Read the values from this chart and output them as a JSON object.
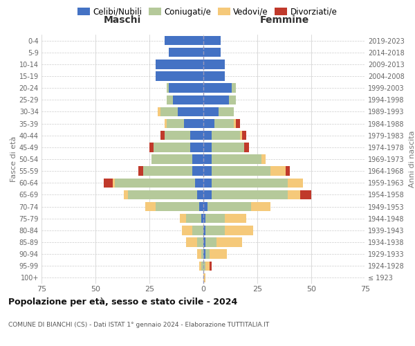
{
  "age_groups": [
    "100+",
    "95-99",
    "90-94",
    "85-89",
    "80-84",
    "75-79",
    "70-74",
    "65-69",
    "60-64",
    "55-59",
    "50-54",
    "45-49",
    "40-44",
    "35-39",
    "30-34",
    "25-29",
    "20-24",
    "15-19",
    "10-14",
    "5-9",
    "0-4"
  ],
  "birth_years": [
    "≤ 1923",
    "1924-1928",
    "1929-1933",
    "1934-1938",
    "1939-1943",
    "1944-1948",
    "1949-1953",
    "1954-1958",
    "1959-1963",
    "1964-1968",
    "1969-1973",
    "1974-1978",
    "1979-1983",
    "1984-1988",
    "1989-1993",
    "1994-1998",
    "1999-2003",
    "2004-2008",
    "2009-2013",
    "2014-2018",
    "2019-2023"
  ],
  "male_celibe": [
    0,
    0,
    0,
    0,
    0,
    1,
    2,
    3,
    4,
    5,
    5,
    6,
    6,
    9,
    12,
    14,
    16,
    22,
    22,
    16,
    18
  ],
  "male_coniugato": [
    0,
    1,
    1,
    3,
    5,
    7,
    20,
    32,
    37,
    23,
    19,
    17,
    12,
    8,
    8,
    3,
    1,
    0,
    0,
    0,
    0
  ],
  "male_vedovo": [
    0,
    1,
    2,
    5,
    5,
    3,
    5,
    2,
    1,
    0,
    0,
    0,
    0,
    1,
    1,
    0,
    0,
    0,
    0,
    0,
    0
  ],
  "male_divorziato": [
    0,
    0,
    0,
    0,
    0,
    0,
    0,
    0,
    4,
    2,
    0,
    2,
    2,
    0,
    0,
    0,
    0,
    0,
    0,
    0,
    0
  ],
  "female_nubile": [
    0,
    0,
    1,
    1,
    1,
    1,
    2,
    4,
    4,
    4,
    4,
    4,
    4,
    5,
    7,
    12,
    13,
    10,
    10,
    8,
    8
  ],
  "female_coniugata": [
    0,
    1,
    2,
    5,
    9,
    9,
    20,
    35,
    35,
    27,
    23,
    15,
    13,
    9,
    7,
    3,
    2,
    0,
    0,
    0,
    0
  ],
  "female_vedova": [
    1,
    2,
    8,
    12,
    13,
    10,
    9,
    6,
    7,
    7,
    2,
    0,
    1,
    1,
    0,
    0,
    0,
    0,
    0,
    0,
    0
  ],
  "female_divorziata": [
    0,
    1,
    0,
    0,
    0,
    0,
    0,
    5,
    0,
    2,
    0,
    2,
    2,
    2,
    0,
    0,
    0,
    0,
    0,
    0,
    0
  ],
  "color_celibe": "#4472C4",
  "color_coniugato": "#b5c99a",
  "color_vedovo": "#f5c97a",
  "color_divorziato": "#c0392b",
  "xlim": 75,
  "title": "Popolazione per età, sesso e stato civile - 2024",
  "subtitle": "COMUNE DI BIANCHI (CS) - Dati ISTAT 1° gennaio 2024 - Elaborazione TUTTITALIA.IT",
  "ylabel_left": "Fasce di età",
  "ylabel_right": "Anni di nascita",
  "label_maschi": "Maschi",
  "label_femmine": "Femmine",
  "legend_labels": [
    "Celibi/Nubili",
    "Coniugati/e",
    "Vedovi/e",
    "Divorziati/e"
  ],
  "bg_color": "#ffffff",
  "grid_color": "#cccccc",
  "xticks": [
    -75,
    -50,
    -25,
    0,
    25,
    50,
    75
  ],
  "xticklabels": [
    "75",
    "50",
    "25",
    "0",
    "25",
    "50",
    "75"
  ]
}
